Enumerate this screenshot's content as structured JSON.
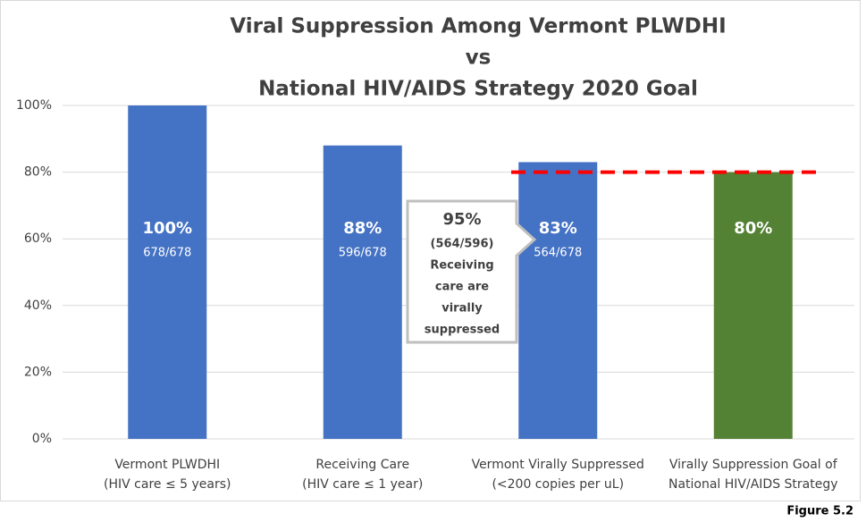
{
  "chart_data": {
    "type": "bar",
    "title": [
      "Viral Suppression Among Vermont PLWDHI",
      "vs",
      "National HIV/AIDS Strategy 2020 Goal"
    ],
    "categories": [
      [
        "Vermont PLWDHI",
        "(HIV care ≤ 5 years)"
      ],
      [
        "Receiving Care",
        "(HIV care ≤ 1 year)"
      ],
      [
        "Vermont Virally Suppressed",
        "(<200 copies per uL)"
      ],
      [
        "Virally Suppression Goal of",
        "National HIV/AIDS Strategy"
      ]
    ],
    "values": [
      100,
      88,
      83,
      80
    ],
    "value_labels": [
      "100%",
      "88%",
      "83%",
      "80%"
    ],
    "fractions": [
      "678/678",
      "596/678",
      "564/678",
      null
    ],
    "colors": [
      "#4472c4",
      "#4472c4",
      "#4472c4",
      "#548235"
    ],
    "ylim": [
      0,
      100
    ],
    "yticks": [
      {
        "value": 0,
        "label": "0%"
      },
      {
        "value": 20,
        "label": "20%"
      },
      {
        "value": 40,
        "label": "40%"
      },
      {
        "value": 60,
        "label": "60%"
      },
      {
        "value": 80,
        "label": "80%"
      },
      {
        "value": 100,
        "label": "100%"
      }
    ],
    "grid": true,
    "goal_line": {
      "value": 80,
      "color": "#ff0000"
    },
    "callout": {
      "label": "95%",
      "lines": [
        "(564/596)",
        "Receiving",
        "care are",
        "virally",
        "suppressed"
      ]
    },
    "figure_label": "Figure 5.2"
  }
}
